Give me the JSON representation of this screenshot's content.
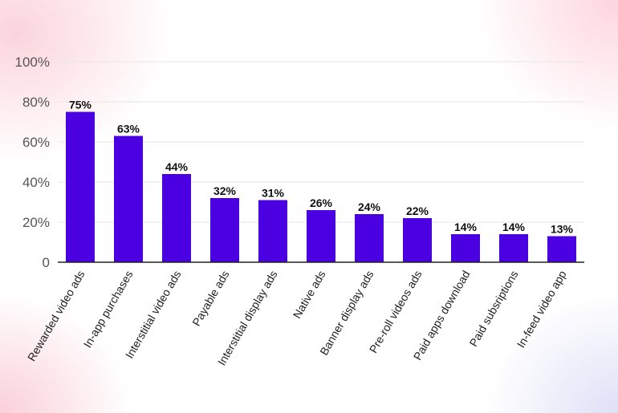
{
  "chart_data": {
    "type": "bar",
    "title": "",
    "xlabel": "",
    "ylabel": "",
    "categories": [
      "Rewarded video ads",
      "In-app purchases",
      "Interstitial video ads",
      "Payable ads",
      "Interstitial display ads",
      "Native ads",
      "Banner display ads",
      "Pre-roll videos ads",
      "Paid apps download",
      "Paid subsriptions",
      "In-feed video app"
    ],
    "values": [
      75,
      63,
      44,
      32,
      31,
      26,
      24,
      22,
      14,
      14,
      13
    ],
    "value_labels": [
      "75%",
      "63%",
      "44%",
      "32%",
      "31%",
      "26%",
      "24%",
      "22%",
      "14%",
      "14%",
      "13%"
    ],
    "ylim": [
      0,
      100
    ],
    "y_ticks": [
      0,
      20,
      40,
      60,
      80,
      100
    ],
    "y_tick_labels": [
      "0",
      "20%",
      "40%",
      "60%",
      "80%",
      "100%"
    ],
    "grid": true,
    "legend": "none",
    "colors": {
      "bar": "#4a00e0",
      "grid": "#e6e6e6",
      "axis": "#222222"
    }
  }
}
